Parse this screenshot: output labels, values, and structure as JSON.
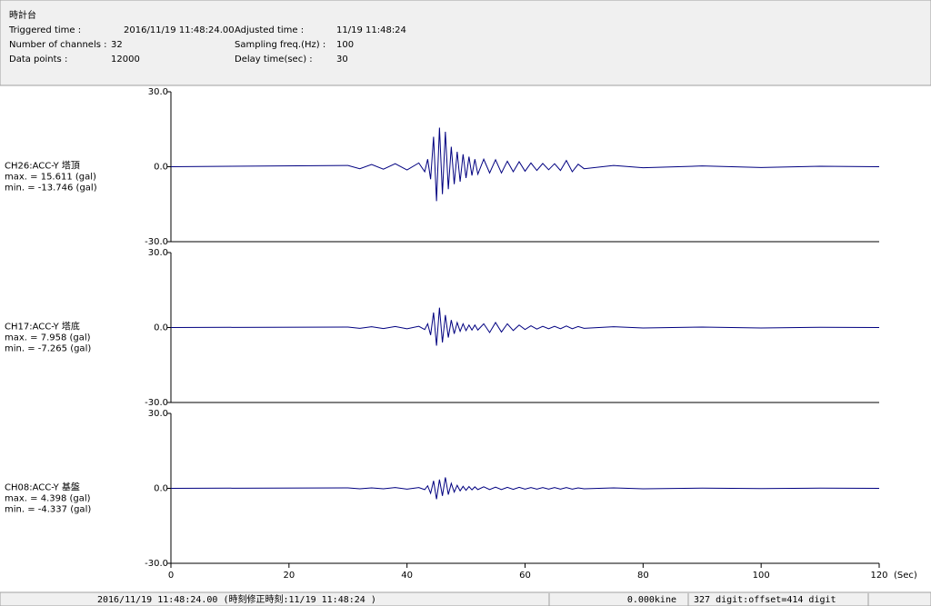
{
  "header": {
    "title": "時計台",
    "fields": [
      {
        "label": "Triggered time :",
        "value": "2016/11/19 11:48:24.00"
      },
      {
        "label": "Number of channels :",
        "value": 32
      },
      {
        "label": "Data points :",
        "value": 12000
      },
      {
        "label": "Adjusted time :",
        "value": "11/19 11:48:24"
      },
      {
        "label": "Sampling freq.(Hz) :",
        "value": 100
      },
      {
        "label": "Delay time(sec) :",
        "value": 30
      }
    ]
  },
  "status_bar": [
    "2016/11/19 11:48:24.00  (時刻修正時刻:11/19 11:48:24  )",
    "0.000kine",
    "327 digit:offset=414 digit"
  ],
  "chart_data": [
    {
      "type": "line",
      "title": "CH26:ACC-Y 塔頂",
      "annotations": [
        "max. = 15.611 (gal)",
        "min. = -13.746 (gal)"
      ],
      "color": "#000080",
      "x": [
        0,
        30,
        32,
        34,
        36,
        38,
        40,
        42,
        43,
        43.5,
        44,
        44.5,
        45,
        45.5,
        46,
        46.5,
        47,
        47.5,
        48,
        48.5,
        49,
        49.5,
        50,
        50.5,
        51,
        51.5,
        52,
        53,
        54,
        55,
        56,
        57,
        58,
        59,
        60,
        61,
        62,
        63,
        64,
        65,
        66,
        67,
        68,
        69,
        70,
        75,
        80,
        90,
        100,
        110,
        120
      ],
      "values": [
        0,
        0.5,
        -0.8,
        0.9,
        -1,
        1.2,
        -1.3,
        1.5,
        -2,
        3,
        -5,
        12,
        -13.746,
        15.611,
        -11,
        14,
        -9,
        8,
        -7,
        6,
        -6,
        5,
        -4.5,
        4,
        -3.5,
        3,
        -3,
        3,
        -2.5,
        2.8,
        -2.5,
        2.2,
        -2,
        2,
        -1.8,
        1.5,
        -1.5,
        1.3,
        -1.2,
        1.2,
        -1.5,
        2.5,
        -2,
        1,
        -0.8,
        0.5,
        -0.4,
        0.3,
        -0.3,
        0.2,
        0
      ],
      "xlim": [
        0,
        120
      ],
      "ylim": [
        -30,
        30
      ],
      "yticks": [
        {
          "value": 30,
          "label": "30.0"
        },
        {
          "value": 0,
          "label": "0.0"
        },
        {
          "value": -30,
          "label": "-30.0"
        }
      ]
    },
    {
      "type": "line",
      "title": "CH17:ACC-Y 塔底",
      "annotations": [
        "max. = 7.958 (gal)",
        "min. = -7.265 (gal)"
      ],
      "color": "#000080",
      "x": [
        0,
        30,
        32,
        34,
        36,
        38,
        40,
        42,
        43,
        43.5,
        44,
        44.5,
        45,
        45.5,
        46,
        46.5,
        47,
        47.5,
        48,
        48.5,
        49,
        49.5,
        50,
        50.5,
        51,
        51.5,
        52,
        53,
        54,
        55,
        56,
        57,
        58,
        59,
        60,
        61,
        62,
        63,
        64,
        65,
        66,
        67,
        68,
        69,
        70,
        75,
        80,
        90,
        100,
        110,
        120
      ],
      "values": [
        0,
        0.2,
        -0.3,
        0.3,
        -0.4,
        0.4,
        -0.5,
        0.5,
        -0.8,
        1.5,
        -3,
        6,
        -7.265,
        7.958,
        -6,
        5,
        -4,
        3,
        -2.5,
        2,
        -1.5,
        1.5,
        -1.2,
        1,
        -1,
        1,
        -1,
        1.5,
        -2,
        2,
        -1.8,
        1.5,
        -1.2,
        1,
        -0.8,
        0.7,
        -0.6,
        0.5,
        -0.5,
        0.5,
        -0.5,
        0.6,
        -0.5,
        0.4,
        -0.3,
        0.3,
        -0.2,
        0.2,
        -0.2,
        0.1,
        0
      ],
      "xlim": [
        0,
        120
      ],
      "ylim": [
        -30,
        30
      ],
      "yticks": [
        {
          "value": 30,
          "label": "30.0"
        },
        {
          "value": 0,
          "label": "0.0"
        },
        {
          "value": -30,
          "label": "-30.0"
        }
      ]
    },
    {
      "type": "line",
      "title": "CH08:ACC-Y 基盤",
      "annotations": [
        "max. = 4.398 (gal)",
        "min. = -4.337 (gal)"
      ],
      "color": "#000080",
      "x": [
        0,
        30,
        32,
        34,
        36,
        38,
        40,
        42,
        43,
        43.5,
        44,
        44.5,
        45,
        45.5,
        46,
        46.5,
        47,
        47.5,
        48,
        48.5,
        49,
        49.5,
        50,
        50.5,
        51,
        51.5,
        52,
        53,
        54,
        55,
        56,
        57,
        58,
        59,
        60,
        61,
        62,
        63,
        64,
        65,
        66,
        67,
        68,
        69,
        70,
        75,
        80,
        90,
        100,
        110,
        120
      ],
      "values": [
        0,
        0.2,
        -0.2,
        0.2,
        -0.2,
        0.3,
        -0.3,
        0.3,
        -0.5,
        1,
        -2,
        3,
        -4.337,
        3.5,
        -3,
        4.398,
        -2.5,
        2,
        -1.5,
        1.2,
        -1,
        0.8,
        -0.8,
        0.7,
        -0.6,
        0.6,
        -0.5,
        0.6,
        -0.5,
        0.5,
        -0.5,
        0.4,
        -0.4,
        0.4,
        -0.3,
        0.3,
        -0.3,
        0.3,
        -0.3,
        0.3,
        -0.3,
        0.3,
        -0.3,
        0.2,
        -0.2,
        0.2,
        -0.2,
        0.1,
        -0.1,
        0.1,
        0
      ],
      "xlim": [
        0,
        120
      ],
      "ylim": [
        -30,
        30
      ],
      "yticks": [
        {
          "value": 30,
          "label": "30.0"
        },
        {
          "value": 0,
          "label": "0.0"
        },
        {
          "value": -30,
          "label": "-30.0"
        }
      ],
      "xticks": [
        0,
        20,
        40,
        60,
        80,
        100,
        120
      ],
      "xlabel": "(Sec)"
    }
  ]
}
